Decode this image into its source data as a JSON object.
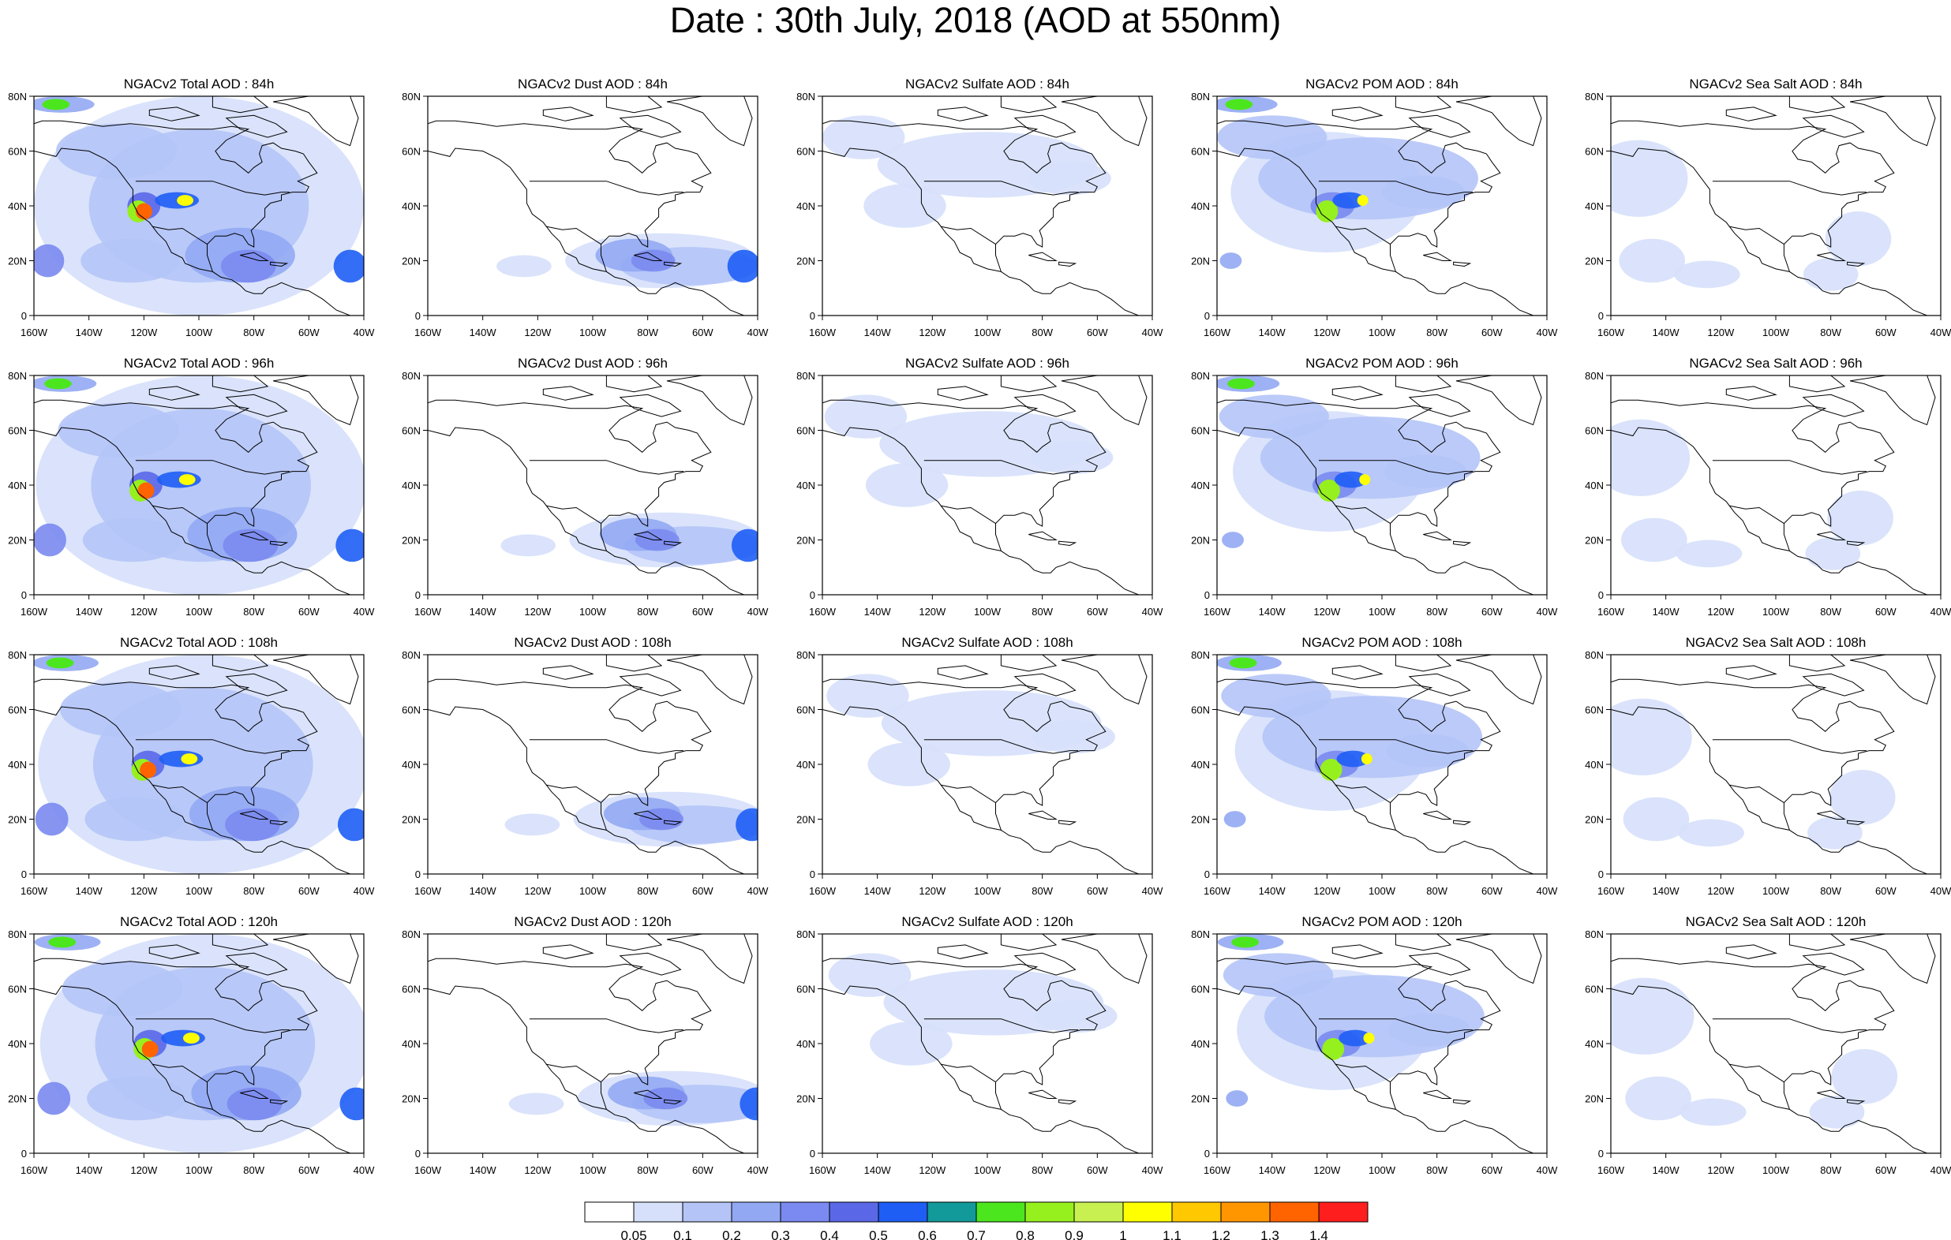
{
  "title": "Date : 30th July, 2018 (AOD at 550nm)",
  "panel_titles": [
    [
      "NGACv2 Total AOD : 84h",
      "NGACv2 Dust AOD : 84h",
      "NGACv2 Sulfate AOD : 84h",
      "NGACv2 POM AOD : 84h",
      "NGACv2 Sea Salt AOD : 84h"
    ],
    [
      "NGACv2 Total AOD : 96h",
      "NGACv2 Dust AOD : 96h",
      "NGACv2 Sulfate AOD : 96h",
      "NGACv2 POM AOD : 96h",
      "NGACv2 Sea Salt AOD : 96h"
    ],
    [
      "NGACv2 Total AOD : 108h",
      "NGACv2 Dust AOD : 108h",
      "NGACv2 Sulfate AOD : 108h",
      "NGACv2 POM AOD : 108h",
      "NGACv2 Sea Salt AOD : 108h"
    ],
    [
      "NGACv2 Total AOD : 120h",
      "NGACv2 Dust AOD : 120h",
      "NGACv2 Sulfate AOD : 120h",
      "NGACv2 POM AOD : 120h",
      "NGACv2 Sea Salt  AOD : 120h"
    ]
  ],
  "x_tick_labels": [
    "160W",
    "140W",
    "120W",
    "100W",
    "80W",
    "60W",
    "40W"
  ],
  "y_tick_labels": [
    "0",
    "20N",
    "40N",
    "60N",
    "80N"
  ],
  "colorbar": {
    "labels": [
      "0.05",
      "0.1",
      "0.2",
      "0.3",
      "0.4",
      "0.5",
      "0.6",
      "0.7",
      "0.8",
      "0.9",
      "1",
      "1.1",
      "1.2",
      "1.3",
      "1.4"
    ],
    "colors": [
      "#ffffff",
      "#d6e0fb",
      "#b4c4f7",
      "#92a8f3",
      "#7a8af0",
      "#5a68e8",
      "#1e5ef5",
      "#129a9a",
      "#4ce61e",
      "#96f01e",
      "#c8f050",
      "#ffff00",
      "#ffc800",
      "#ff9600",
      "#ff6400",
      "#ff1e1e"
    ]
  },
  "colors": {
    "land_outline": "#000000",
    "low_aod": "#d6e0fb",
    "mid_aod": "#92a8f3",
    "high_aod": "#5a68e8"
  }
}
